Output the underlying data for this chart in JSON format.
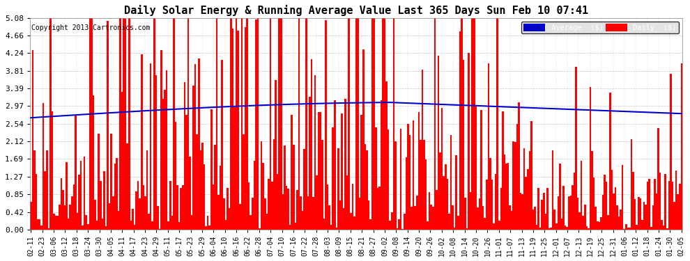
{
  "title": "Daily Solar Energy & Running Average Value Last 365 Days Sun Feb 10 07:41",
  "copyright": "Copyright 2013 Cartronics.com",
  "background_color": "#ffffff",
  "plot_bg_color": "#ffffff",
  "bar_color": "#ff0000",
  "line_color": "#0000cc",
  "yticks": [
    0.0,
    0.42,
    0.85,
    1.27,
    1.69,
    2.12,
    2.54,
    2.97,
    3.39,
    3.81,
    4.24,
    4.66,
    5.08
  ],
  "ymax": 5.08,
  "ymin": 0.0,
  "legend_avg_bg": "#0000cc",
  "legend_daily_bg": "#ff0000",
  "legend_avg_text": "Average  ($)",
  "legend_daily_text": "Daily  ($)",
  "n_bars": 365,
  "xtick_labels": [
    "02-11",
    "02-23",
    "03-06",
    "03-12",
    "03-18",
    "03-24",
    "03-30",
    "04-05",
    "04-11",
    "04-17",
    "04-23",
    "04-29",
    "05-11",
    "05-17",
    "05-23",
    "05-29",
    "06-04",
    "06-10",
    "06-16",
    "06-22",
    "06-28",
    "07-04",
    "07-10",
    "07-16",
    "07-22",
    "07-28",
    "08-03",
    "08-09",
    "08-15",
    "08-21",
    "08-27",
    "09-02",
    "09-08",
    "09-14",
    "09-20",
    "09-26",
    "10-02",
    "10-08",
    "10-14",
    "10-20",
    "10-26",
    "11-01",
    "11-07",
    "11-13",
    "11-19",
    "11-25",
    "12-01",
    "12-07",
    "12-13",
    "12-19",
    "12-25",
    "12-31",
    "01-06",
    "01-12",
    "01-18",
    "01-24",
    "01-30",
    "02-05"
  ]
}
